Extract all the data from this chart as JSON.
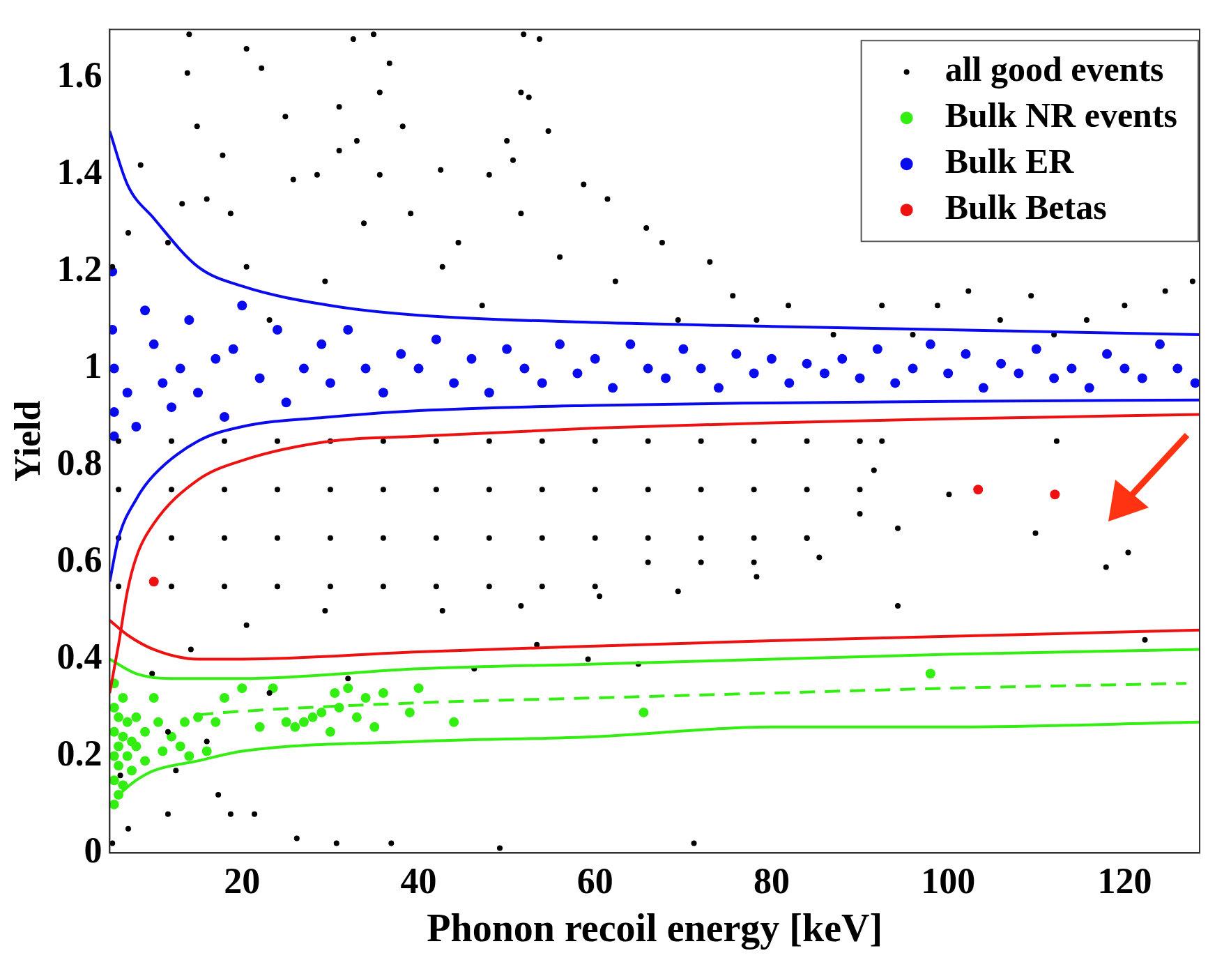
{
  "chart_data": {
    "type": "scatter",
    "xlabel": "Phonon recoil energy [keV]",
    "ylabel": "Yield",
    "xlim": [
      5,
      128.5
    ],
    "xticks": [
      20,
      40,
      60,
      80,
      100,
      120
    ],
    "ylim": [
      0,
      1.7
    ],
    "yticks": [
      0,
      0.2,
      0.4,
      0.6,
      0.8,
      1,
      1.2,
      1.4,
      1.6
    ],
    "grid": false,
    "legend": "top right",
    "series": [
      {
        "name": "all good events",
        "color": "#000000",
        "marker": "circle",
        "x": [
          14,
          13.8,
          20.5,
          22.2,
          24.9,
          31,
          32.6,
          35.6,
          34.9,
          36.7,
          38.2,
          33,
          31,
          28.5,
          35.6,
          42.5,
          48,
          50,
          51.6,
          52.5,
          54.7,
          51.9,
          53.7,
          50.7,
          8.5,
          13.2,
          17.8,
          14.9,
          5.3,
          7.1,
          25.8,
          16,
          18.7,
          20.5,
          33.8,
          39.1,
          44.5,
          51.6,
          58.7,
          61.4,
          65.8,
          67.6,
          73,
          75.6,
          81.9,
          78.3,
          87,
          92.5,
          96,
          98.8,
          102.3,
          105.9,
          109.4,
          112,
          115.7,
          120,
          124.6,
          127.7,
          29.4,
          42.7,
          56,
          47.2,
          62.3,
          23.1,
          11.6,
          69.4,
          6,
          12,
          18,
          24,
          30,
          36,
          42,
          48,
          54,
          60,
          66,
          72,
          78,
          84,
          90,
          6,
          12,
          18,
          24,
          30,
          36,
          42,
          48,
          54,
          60,
          66,
          72,
          78,
          84,
          90,
          6,
          12,
          18,
          24,
          30,
          36,
          42,
          48,
          54,
          60,
          66,
          72,
          78,
          84,
          90,
          6,
          12,
          18,
          24,
          30,
          36,
          42,
          48,
          54,
          60,
          66,
          72,
          78,
          84,
          90,
          20.5,
          29.4,
          42.7,
          51.6,
          60.5,
          69.4,
          78.3,
          85.4,
          14.2,
          9.8,
          91.6,
          100.1,
          94.3,
          94.3,
          109.9,
          117.9,
          120.4,
          122.3,
          92.5,
          112.3,
          7.1,
          11.6,
          18.7,
          21.4,
          26.2,
          30.7,
          36.9,
          49.2,
          71.2,
          12.5,
          16,
          11.6,
          6.2,
          5.3,
          17.3,
          23.1,
          32,
          64.9,
          59.2,
          46.3,
          53.4
        ],
        "values": [
          1.69,
          1.61,
          1.66,
          1.62,
          1.52,
          1.54,
          1.68,
          1.57,
          1.69,
          1.63,
          1.5,
          1.47,
          1.45,
          1.4,
          1.4,
          1.41,
          1.4,
          1.47,
          1.57,
          1.56,
          1.49,
          1.69,
          1.68,
          1.43,
          1.42,
          1.34,
          1.44,
          1.5,
          1.21,
          1.28,
          1.39,
          1.35,
          1.32,
          1.21,
          1.3,
          1.32,
          1.26,
          1.32,
          1.38,
          1.35,
          1.29,
          1.26,
          1.22,
          1.15,
          1.13,
          1.1,
          1.07,
          1.13,
          1.07,
          1.13,
          1.16,
          1.1,
          1.15,
          1.07,
          1.1,
          1.13,
          1.16,
          1.18,
          1.18,
          1.21,
          1.23,
          1.13,
          1.18,
          1.1,
          1.26,
          1.1,
          0.55,
          0.55,
          0.55,
          0.55,
          0.55,
          0.55,
          0.55,
          0.55,
          0.55,
          0.55,
          0.6,
          0.6,
          0.6,
          0.65,
          0.7,
          0.65,
          0.65,
          0.65,
          0.65,
          0.65,
          0.65,
          0.65,
          0.65,
          0.65,
          0.65,
          0.65,
          0.65,
          0.65,
          0.65,
          0.75,
          0.75,
          0.75,
          0.75,
          0.75,
          0.75,
          0.75,
          0.75,
          0.75,
          0.75,
          0.75,
          0.75,
          0.75,
          0.75,
          0.75,
          0.85,
          0.85,
          0.85,
          0.85,
          0.85,
          0.85,
          0.85,
          0.85,
          0.85,
          0.85,
          0.85,
          0.85,
          0.85,
          0.85,
          0.85,
          0.85,
          0.47,
          0.5,
          0.5,
          0.51,
          0.53,
          0.54,
          0.57,
          0.61,
          0.42,
          0.37,
          0.79,
          0.74,
          0.67,
          0.51,
          0.66,
          0.59,
          0.62,
          0.44,
          0.85,
          0.85,
          0.05,
          0.08,
          0.08,
          0.08,
          0.03,
          0.02,
          0.02,
          0.01,
          0.02,
          0.17,
          0.23,
          0.25,
          0.16,
          0.02,
          0.12,
          0.33,
          0.36,
          0.39,
          0.4,
          0.38,
          0.43
        ]
      },
      {
        "name": "Bulk NR events",
        "color": "#33ee11",
        "marker": "circle",
        "x": [
          5.5,
          5.5,
          5.5,
          5.5,
          5.5,
          5.5,
          6,
          6,
          6,
          6,
          6.5,
          6.5,
          6.5,
          7,
          7,
          7.5,
          7.5,
          8,
          8,
          9,
          9,
          10,
          10.5,
          11,
          12,
          13,
          13.5,
          14,
          15,
          16,
          17,
          18,
          20,
          22,
          23.5,
          25,
          26,
          27,
          28,
          29,
          30,
          30.5,
          31,
          32,
          33,
          34,
          35,
          36,
          39,
          40,
          44,
          65.5,
          98
        ],
        "values": [
          0.1,
          0.15,
          0.2,
          0.25,
          0.3,
          0.35,
          0.12,
          0.18,
          0.22,
          0.28,
          0.14,
          0.24,
          0.32,
          0.2,
          0.27,
          0.17,
          0.23,
          0.22,
          0.28,
          0.19,
          0.25,
          0.32,
          0.27,
          0.21,
          0.24,
          0.22,
          0.27,
          0.2,
          0.28,
          0.21,
          0.27,
          0.32,
          0.34,
          0.26,
          0.34,
          0.27,
          0.26,
          0.27,
          0.28,
          0.29,
          0.25,
          0.33,
          0.3,
          0.34,
          0.28,
          0.32,
          0.26,
          0.33,
          0.29,
          0.34,
          0.27,
          0.29,
          0.37
        ]
      },
      {
        "name": "Bulk ER",
        "color": "#0a0aee",
        "marker": "circle",
        "x": [
          5.3,
          5.3,
          5.5,
          5.5,
          5.5,
          7,
          8,
          9,
          10,
          11,
          12,
          13,
          14,
          15,
          17,
          18,
          19,
          20,
          22,
          24,
          25,
          27,
          29,
          30,
          32,
          34,
          36,
          38,
          40,
          42,
          44,
          46,
          48,
          50,
          52,
          54,
          56,
          58,
          60,
          62,
          64,
          66,
          68,
          70,
          72,
          74,
          76,
          78,
          80,
          82,
          84,
          86,
          88,
          90,
          92,
          94,
          96,
          98,
          100,
          102,
          104,
          106,
          108,
          110,
          112,
          114,
          116,
          118,
          120,
          122,
          124,
          126,
          128
        ],
        "values": [
          1.2,
          1.08,
          1.0,
          0.91,
          0.86,
          0.95,
          0.88,
          1.12,
          1.05,
          0.97,
          0.92,
          1.0,
          1.1,
          0.95,
          1.02,
          0.9,
          1.04,
          1.13,
          0.98,
          1.08,
          0.93,
          1.0,
          1.05,
          0.97,
          1.08,
          1.0,
          0.95,
          1.03,
          1.0,
          1.06,
          0.97,
          1.02,
          0.95,
          1.04,
          1.0,
          0.97,
          1.05,
          0.99,
          1.02,
          0.96,
          1.05,
          1.0,
          0.98,
          1.04,
          1.0,
          0.96,
          1.03,
          0.99,
          1.02,
          0.97,
          1.01,
          0.99,
          1.02,
          0.98,
          1.04,
          0.97,
          1.0,
          1.05,
          0.99,
          1.03,
          0.96,
          1.01,
          0.99,
          1.04,
          0.98,
          1.0,
          0.96,
          1.03,
          1.0,
          0.98,
          1.05,
          1.0,
          0.97
        ]
      },
      {
        "name": "Bulk Betas",
        "color": "#ee1111",
        "marker": "circle",
        "x": [
          10,
          103.4,
          112.1
        ],
        "values": [
          0.56,
          0.75,
          0.74
        ]
      },
      {
        "type": "line",
        "color": "#0a0aee",
        "line_style": "solid",
        "x": [
          5,
          7,
          10,
          15,
          20,
          30,
          40,
          60,
          80,
          100,
          128.5
        ],
        "values": [
          1.49,
          1.38,
          1.31,
          1.21,
          1.17,
          1.13,
          1.11,
          1.095,
          1.087,
          1.08,
          1.07
        ]
      },
      {
        "type": "line",
        "color": "#0a0aee",
        "line_style": "solid",
        "x": [
          5,
          6,
          8,
          10,
          15,
          20,
          30,
          40,
          60,
          80,
          100,
          128.5
        ],
        "values": [
          0.56,
          0.65,
          0.73,
          0.78,
          0.85,
          0.88,
          0.9,
          0.913,
          0.924,
          0.929,
          0.932,
          0.935
        ]
      },
      {
        "type": "line",
        "color": "#ee1111",
        "line_style": "solid",
        "x": [
          5,
          6,
          7,
          8,
          10,
          15,
          20,
          30,
          40,
          60,
          80,
          100,
          128.5
        ],
        "values": [
          0.33,
          0.43,
          0.54,
          0.61,
          0.68,
          0.77,
          0.81,
          0.85,
          0.86,
          0.877,
          0.888,
          0.896,
          0.905
        ]
      },
      {
        "type": "line",
        "color": "#ee1111",
        "line_style": "solid",
        "x": [
          5,
          7,
          10,
          15,
          20,
          40,
          60,
          80,
          100,
          128.5
        ],
        "values": [
          0.48,
          0.45,
          0.42,
          0.4,
          0.4,
          0.415,
          0.427,
          0.438,
          0.447,
          0.46
        ]
      },
      {
        "type": "line",
        "color": "#33ee11",
        "line_style": "solid",
        "x": [
          5,
          8,
          12,
          20,
          40,
          60,
          80,
          100,
          128.5
        ],
        "values": [
          0.4,
          0.37,
          0.36,
          0.36,
          0.38,
          0.39,
          0.4,
          0.41,
          0.42
        ]
      },
      {
        "type": "line",
        "color": "#33ee11",
        "line_style": "dashed",
        "x": [
          15,
          18,
          40,
          60,
          80,
          100,
          127
        ],
        "values": [
          0.285,
          0.29,
          0.31,
          0.32,
          0.33,
          0.34,
          0.35
        ]
      },
      {
        "type": "line",
        "color": "#33ee11",
        "line_style": "solid",
        "x": [
          6,
          8,
          10,
          15,
          20,
          40,
          60,
          80,
          100,
          128.5
        ],
        "values": [
          0.12,
          0.15,
          0.17,
          0.19,
          0.21,
          0.23,
          0.24,
          0.26,
          0.26,
          0.27
        ]
      }
    ]
  }
}
